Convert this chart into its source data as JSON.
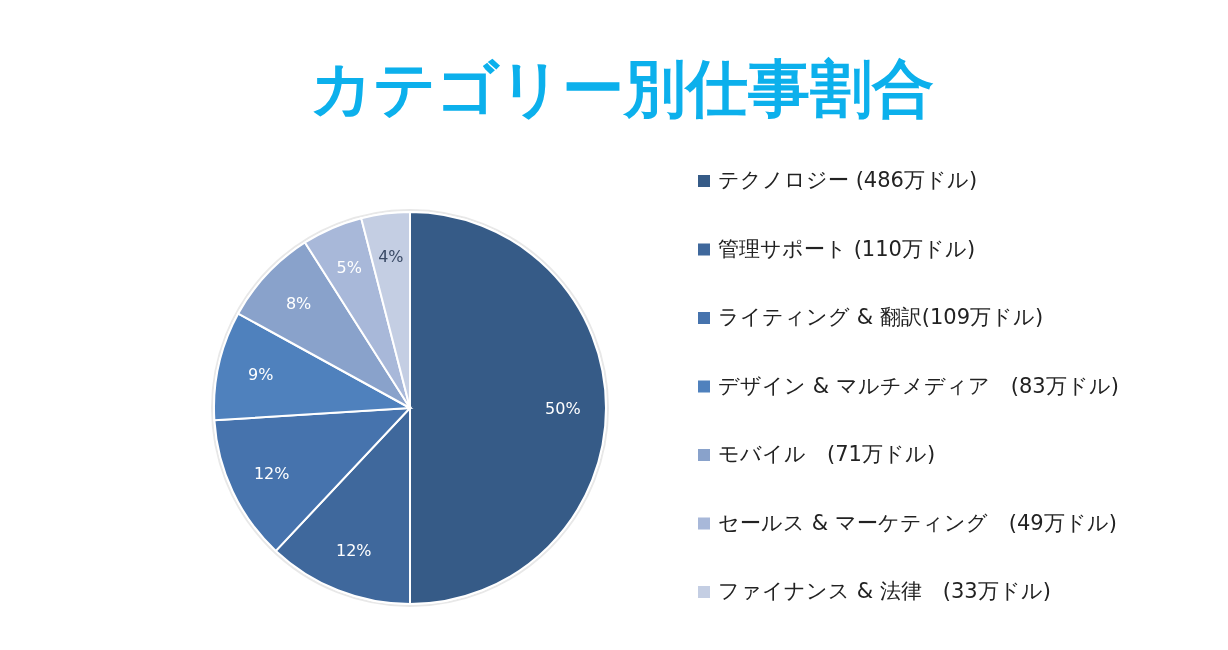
{
  "chart_data": {
    "type": "pie",
    "title": "カテゴリー別仕事割合",
    "categories": [
      "テクノロジー (486万ドル)",
      "管理サポート (110万ドル)",
      "ライティング & 翻訳(109万ドル)",
      "デザイン & マルチメディア　(83万ドル)",
      "モバイル　(71万ドル)",
      "セールス & マーケティング　(49万ドル)",
      "ファイナンス & 法律　(33万ドル)"
    ],
    "values": [
      50,
      12,
      12,
      9,
      8,
      5,
      4
    ],
    "value_labels": [
      "50%",
      "12%",
      "12%",
      "9%",
      "8%",
      "5%",
      "4%"
    ],
    "colors": [
      "#365b87",
      "#3f689c",
      "#4673ad",
      "#4f81bd",
      "#89a2cb",
      "#a8b8d9",
      "#c4cee3"
    ],
    "legend": "right"
  }
}
